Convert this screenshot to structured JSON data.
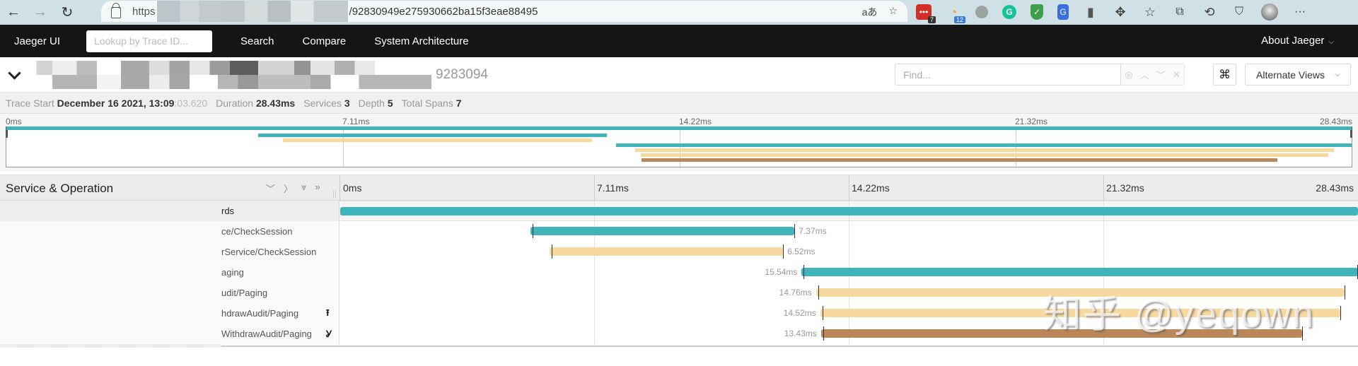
{
  "browser": {
    "url_scheme": "https",
    "url_path": "/92830949e275930662ba15f3eae88495",
    "translate_icon": "aあ",
    "extensions": [
      {
        "name": "lastpass-extension",
        "color": "#d32d27",
        "badge": "7",
        "badge_color": "#333"
      },
      {
        "name": "rss-extension",
        "color": "#f2a33a",
        "badge": "12",
        "badge_color": "#3a7be0"
      },
      {
        "name": "gray-circle-extension",
        "color": "#9aa5a0"
      },
      {
        "name": "grammarly-extension",
        "color": "#15c39a"
      },
      {
        "name": "shield-extension",
        "color": "#3e9f4a"
      },
      {
        "name": "translate-extension",
        "color": "#3a6fe0"
      }
    ]
  },
  "navbar": {
    "brand": "Jaeger UI",
    "lookup_placeholder": "Lookup by Trace ID...",
    "links": [
      "Search",
      "Compare",
      "System Architecture"
    ],
    "about": "About Jaeger"
  },
  "trace_header": {
    "trace_id_suffix": "9283094",
    "find_placeholder": "Find...",
    "kbd_icon": "⌘",
    "alternate_views": "Alternate Views"
  },
  "info": {
    "trace_start_label": "Trace Start",
    "trace_start_value": "December 16 2021, 13:09",
    "trace_start_ms": ":03.620",
    "duration_label": "Duration",
    "duration_value": "28.43ms",
    "services_label": "Services",
    "services_value": "3",
    "depth_label": "Depth",
    "depth_value": "5",
    "total_spans_label": "Total Spans",
    "total_spans_value": "7"
  },
  "timeline": {
    "ticks": [
      "0ms",
      "7.11ms",
      "14.22ms",
      "21.32ms",
      "28.43ms"
    ],
    "header_title": "Service & Operation",
    "total_ms": 28.43
  },
  "spans": [
    {
      "op": "rds",
      "color": "#3fb5bb",
      "start_ms": 0.0,
      "duration_ms": 28.43,
      "label": "",
      "icon": "",
      "highlight": true
    },
    {
      "op": "ce/CheckSession",
      "color": "#3fb5bb",
      "start_ms": 5.32,
      "duration_ms": 7.37,
      "label": "7.37ms",
      "label_side": "right",
      "icon": ""
    },
    {
      "op": "rService/CheckSession",
      "color": "#f7d9a0",
      "start_ms": 5.85,
      "duration_ms": 6.52,
      "label": "6.52ms",
      "label_side": "right",
      "icon": ""
    },
    {
      "op": "aging",
      "color": "#3fb5bb",
      "start_ms": 12.89,
      "duration_ms": 15.54,
      "label": "15.54ms",
      "label_side": "left",
      "icon": ""
    },
    {
      "op": "udit/Paging",
      "color": "#f7d9a0",
      "start_ms": 13.29,
      "duration_ms": 14.76,
      "label": "14.76ms",
      "label_side": "left",
      "icon": ""
    },
    {
      "op": "hdrawAudit/Paging",
      "color": "#f7d9a0",
      "start_ms": 13.41,
      "duration_ms": 14.52,
      "label": "14.52ms",
      "label_side": "left",
      "icon": "⭱"
    },
    {
      "op": "WithdrawAudit/Paging",
      "color": "#b9875a",
      "start_ms": 13.43,
      "duration_ms": 13.43,
      "label": "13.43ms",
      "label_side": "left",
      "icon": "Ỿ"
    }
  ],
  "watermark": "知乎 @yeqown"
}
